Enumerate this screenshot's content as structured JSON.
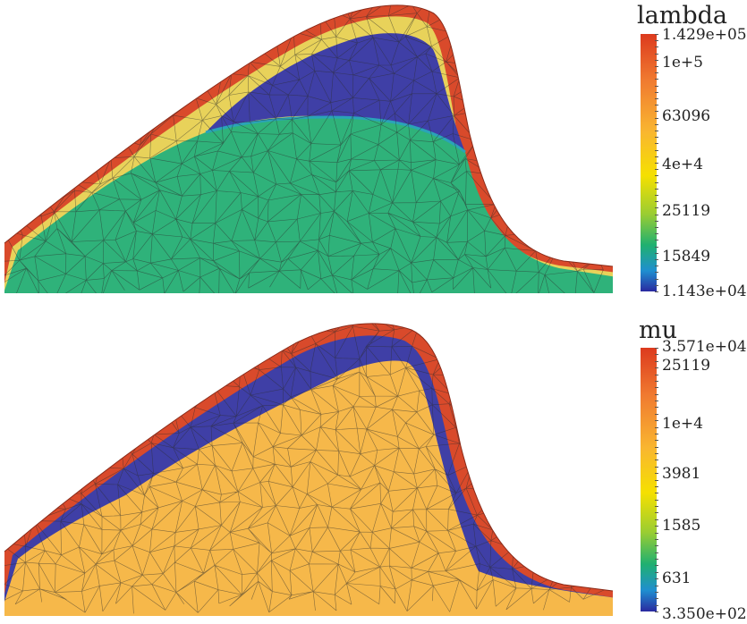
{
  "panels": [
    {
      "id": "lambda",
      "colorbar": {
        "title": "lambda",
        "labels": [
          "1.429e+05",
          "1e+5",
          "63096",
          "4e+4",
          "25119",
          "15849",
          "1.143e+04"
        ]
      },
      "colors": {
        "outer_layer": "#d94a2b",
        "middle_layer": "#e8d25a",
        "core_region": "#3f3fa6",
        "bulk_region": "#2fb27a",
        "interface": "#2aa3b8",
        "mesh_edge": "#2b2b2b"
      }
    },
    {
      "id": "mu",
      "colorbar": {
        "title": "mu",
        "labels": [
          "3.571e+04",
          "25119",
          "1e+4",
          "3981",
          "1585",
          "631",
          "3.350e+02"
        ]
      },
      "colors": {
        "outer_layer": "#d94a2b",
        "middle_layer": "#3f3fa6",
        "bulk_region": "#f6b84a",
        "mesh_edge": "#2b2b2b"
      }
    }
  ],
  "colormap": [
    "#2a2aa0",
    "#1f8fd0",
    "#20b070",
    "#9acd32",
    "#f5e000",
    "#f9b630",
    "#f08a30",
    "#dc3a1e"
  ]
}
